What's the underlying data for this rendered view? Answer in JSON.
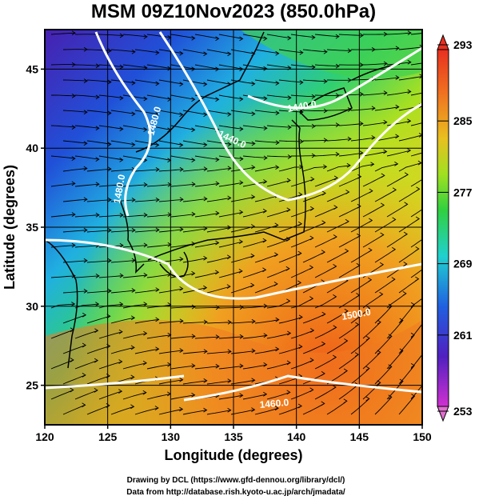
{
  "map": {
    "title": "MSM 09Z10Nov2023 (850.0hPa)",
    "xlabel": "Longitude (degrees)",
    "ylabel": "Latitude  (degrees)",
    "lon_range": [
      120,
      150
    ],
    "lat_range": [
      22.5,
      47.5
    ],
    "lon_ticks": [
      "120",
      "125",
      "130",
      "135",
      "140",
      "145",
      "150"
    ],
    "lat_ticks": [
      "25",
      "30",
      "35",
      "40",
      "45"
    ],
    "grid": true,
    "contour_labels": [
      "1480.0",
      "1440.0",
      "1440.0",
      "1500.0",
      "1460.0",
      "1480.0"
    ],
    "colorbar": {
      "ticks": [
        "293",
        "285",
        "277",
        "269",
        "261",
        "253"
      ],
      "range": [
        253,
        293
      ],
      "colors": [
        "#f07020",
        "#f0a020",
        "#d8d820",
        "#40d040",
        "#20d0d0",
        "#2060e0",
        "#5020c0",
        "#c020c0",
        "#f070c0"
      ]
    },
    "credit_line1": "Drawing by DCL (https://www.gfd-dennou.org/library/dcl/)",
    "credit_line2": "Data from http://database.rish.kyoto-u.ac.jp/arch/jmadata/"
  }
}
